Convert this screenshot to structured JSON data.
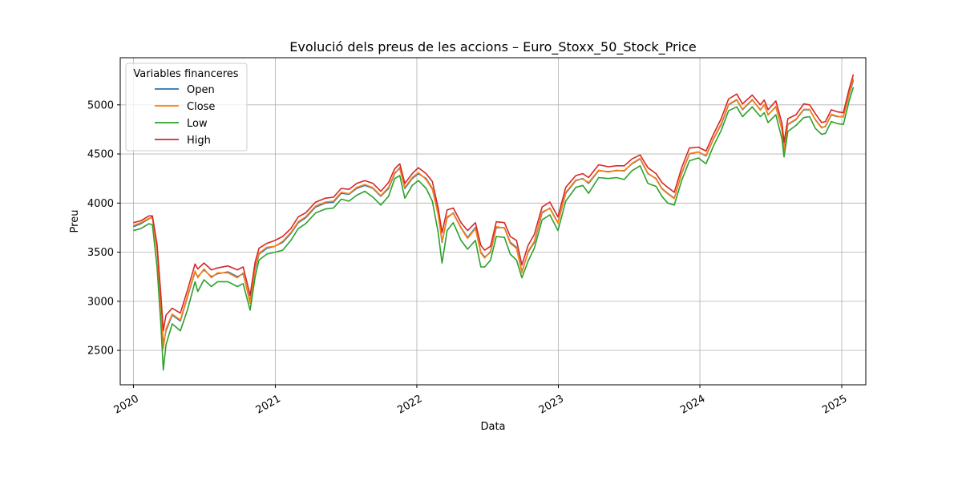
{
  "chart_data": {
    "type": "line",
    "title": "Evolució dels preus de les accions – Euro_Stoxx_50_Stock_Price",
    "xlabel": "Data",
    "ylabel": "Preu",
    "xlim": [
      "2019-11-28",
      "2025-03-04"
    ],
    "ylim": [
      2150,
      5480
    ],
    "x_ticks": [
      "2020-01-01",
      "2021-01-01",
      "2022-01-01",
      "2023-01-01",
      "2024-01-01",
      "2025-01-01"
    ],
    "x_tick_labels": [
      "2020",
      "2021",
      "2022",
      "2023",
      "2024",
      "2025"
    ],
    "y_ticks": [
      2500,
      3000,
      3500,
      4000,
      4500,
      5000
    ],
    "y_tick_labels": [
      "2500",
      "3000",
      "3500",
      "4000",
      "4500",
      "5000"
    ],
    "grid": true,
    "legend": {
      "title": "Variables financeres",
      "position": "top-left"
    },
    "x": [
      "2020-01-01",
      "2020-01-20",
      "2020-02-10",
      "2020-02-19",
      "2020-03-02",
      "2020-03-12",
      "2020-03-18",
      "2020-03-25",
      "2020-04-10",
      "2020-05-01",
      "2020-05-20",
      "2020-06-08",
      "2020-06-15",
      "2020-07-01",
      "2020-07-20",
      "2020-08-05",
      "2020-09-01",
      "2020-09-25",
      "2020-10-10",
      "2020-10-28",
      "2020-11-10",
      "2020-11-20",
      "2020-12-10",
      "2020-12-31",
      "2021-01-20",
      "2021-02-10",
      "2021-03-01",
      "2021-03-20",
      "2021-04-15",
      "2021-05-10",
      "2021-05-31",
      "2021-06-20",
      "2021-07-10",
      "2021-07-30",
      "2021-08-20",
      "2021-09-10",
      "2021-09-30",
      "2021-10-20",
      "2021-11-05",
      "2021-11-18",
      "2021-12-01",
      "2021-12-20",
      "2022-01-05",
      "2022-01-25",
      "2022-02-10",
      "2022-02-25",
      "2022-03-07",
      "2022-03-20",
      "2022-04-05",
      "2022-04-25",
      "2022-05-12",
      "2022-06-01",
      "2022-06-15",
      "2022-06-25",
      "2022-07-10",
      "2022-07-25",
      "2022-08-15",
      "2022-08-30",
      "2022-09-15",
      "2022-09-29",
      "2022-10-15",
      "2022-10-31",
      "2022-11-20",
      "2022-12-10",
      "2022-12-31",
      "2023-01-20",
      "2023-02-15",
      "2023-03-05",
      "2023-03-20",
      "2023-04-15",
      "2023-05-10",
      "2023-05-31",
      "2023-06-20",
      "2023-07-10",
      "2023-07-31",
      "2023-08-20",
      "2023-09-10",
      "2023-09-25",
      "2023-10-10",
      "2023-10-27",
      "2023-11-15",
      "2023-12-05",
      "2023-12-28",
      "2024-01-17",
      "2024-02-05",
      "2024-02-25",
      "2024-03-15",
      "2024-04-05",
      "2024-04-20",
      "2024-05-15",
      "2024-06-05",
      "2024-06-15",
      "2024-06-25",
      "2024-07-15",
      "2024-07-31",
      "2024-08-05",
      "2024-08-15",
      "2024-09-05",
      "2024-09-25",
      "2024-10-10",
      "2024-10-25",
      "2024-11-10",
      "2024-11-20",
      "2024-12-05",
      "2024-12-20",
      "2025-01-05",
      "2025-01-20",
      "2025-01-31"
    ],
    "series": [
      {
        "name": "Open",
        "color": "#1f77b4",
        "values": [
          3760,
          3790,
          3840,
          3860,
          3550,
          2970,
          2560,
          2700,
          2860,
          2800,
          3050,
          3300,
          3250,
          3320,
          3250,
          3280,
          3300,
          3250,
          3280,
          3000,
          3330,
          3480,
          3540,
          3560,
          3600,
          3690,
          3800,
          3850,
          3960,
          4000,
          4010,
          4100,
          4090,
          4150,
          4180,
          4150,
          4070,
          4150,
          4300,
          4360,
          4150,
          4250,
          4300,
          4250,
          4150,
          3900,
          3600,
          3850,
          3900,
          3750,
          3650,
          3750,
          3500,
          3450,
          3500,
          3750,
          3750,
          3600,
          3550,
          3300,
          3500,
          3600,
          3900,
          3950,
          3800,
          4100,
          4230,
          4250,
          4200,
          4330,
          4320,
          4330,
          4330,
          4400,
          4450,
          4300,
          4250,
          4150,
          4100,
          4050,
          4300,
          4500,
          4520,
          4480,
          4650,
          4800,
          5000,
          5050,
          4950,
          5050,
          4950,
          5000,
          4900,
          4980,
          4750,
          4550,
          4800,
          4850,
          4950,
          4950,
          4850,
          4770,
          4780,
          4900,
          4880,
          4880,
          5100,
          5250
        ]
      },
      {
        "name": "Close",
        "color": "#ff7f0e",
        "values": [
          3770,
          3800,
          3845,
          3850,
          3520,
          2950,
          2520,
          2720,
          2870,
          2810,
          3060,
          3310,
          3240,
          3330,
          3240,
          3290,
          3290,
          3240,
          3290,
          2980,
          3350,
          3490,
          3550,
          3560,
          3610,
          3700,
          3810,
          3860,
          3970,
          4010,
          4020,
          4110,
          4095,
          4160,
          4190,
          4155,
          4075,
          4160,
          4310,
          4350,
          4160,
          4260,
          4310,
          4240,
          4140,
          3880,
          3610,
          3860,
          3895,
          3745,
          3640,
          3740,
          3490,
          3440,
          3510,
          3760,
          3745,
          3590,
          3540,
          3290,
          3510,
          3610,
          3910,
          3945,
          3795,
          4110,
          4235,
          4245,
          4210,
          4335,
          4315,
          4335,
          4325,
          4405,
          4455,
          4305,
          4245,
          4145,
          4095,
          4045,
          4310,
          4505,
          4520,
          4485,
          4655,
          4810,
          5005,
          5055,
          4955,
          5055,
          4945,
          5005,
          4895,
          4985,
          4745,
          4540,
          4805,
          4855,
          4955,
          4955,
          4845,
          4765,
          4785,
          4905,
          4885,
          4875,
          5110,
          5270
        ]
      },
      {
        "name": "Low",
        "color": "#2ca02c",
        "values": [
          3720,
          3740,
          3790,
          3780,
          3350,
          2750,
          2300,
          2560,
          2770,
          2700,
          2920,
          3200,
          3100,
          3220,
          3150,
          3200,
          3200,
          3150,
          3180,
          2910,
          3250,
          3420,
          3480,
          3500,
          3520,
          3620,
          3740,
          3790,
          3900,
          3940,
          3950,
          4040,
          4020,
          4080,
          4120,
          4060,
          3980,
          4070,
          4250,
          4280,
          4050,
          4180,
          4230,
          4150,
          4020,
          3700,
          3390,
          3720,
          3800,
          3620,
          3530,
          3620,
          3350,
          3350,
          3420,
          3660,
          3650,
          3480,
          3420,
          3240,
          3410,
          3540,
          3830,
          3880,
          3720,
          4020,
          4160,
          4180,
          4100,
          4260,
          4250,
          4260,
          4240,
          4330,
          4380,
          4200,
          4170,
          4070,
          4000,
          3980,
          4230,
          4430,
          4460,
          4400,
          4580,
          4740,
          4940,
          4980,
          4880,
          4980,
          4880,
          4920,
          4820,
          4900,
          4650,
          4470,
          4730,
          4790,
          4870,
          4880,
          4760,
          4700,
          4710,
          4830,
          4810,
          4800,
          5040,
          5180
        ]
      },
      {
        "name": "High",
        "color": "#d62728",
        "values": [
          3800,
          3820,
          3870,
          3870,
          3580,
          3050,
          2700,
          2860,
          2930,
          2880,
          3120,
          3380,
          3330,
          3390,
          3320,
          3340,
          3360,
          3320,
          3350,
          3060,
          3400,
          3540,
          3590,
          3620,
          3660,
          3740,
          3860,
          3900,
          4010,
          4050,
          4060,
          4150,
          4140,
          4200,
          4230,
          4200,
          4120,
          4210,
          4350,
          4400,
          4200,
          4300,
          4360,
          4300,
          4220,
          3950,
          3700,
          3930,
          3950,
          3800,
          3720,
          3800,
          3570,
          3520,
          3560,
          3810,
          3800,
          3660,
          3620,
          3370,
          3570,
          3680,
          3960,
          4010,
          3860,
          4160,
          4280,
          4300,
          4260,
          4390,
          4370,
          4380,
          4380,
          4450,
          4490,
          4360,
          4300,
          4210,
          4160,
          4110,
          4360,
          4560,
          4570,
          4530,
          4700,
          4860,
          5060,
          5110,
          5010,
          5100,
          5000,
          5050,
          4950,
          5040,
          4810,
          4620,
          4860,
          4900,
          5010,
          5000,
          4910,
          4820,
          4830,
          4950,
          4930,
          4920,
          5160,
          5310
        ]
      }
    ]
  }
}
